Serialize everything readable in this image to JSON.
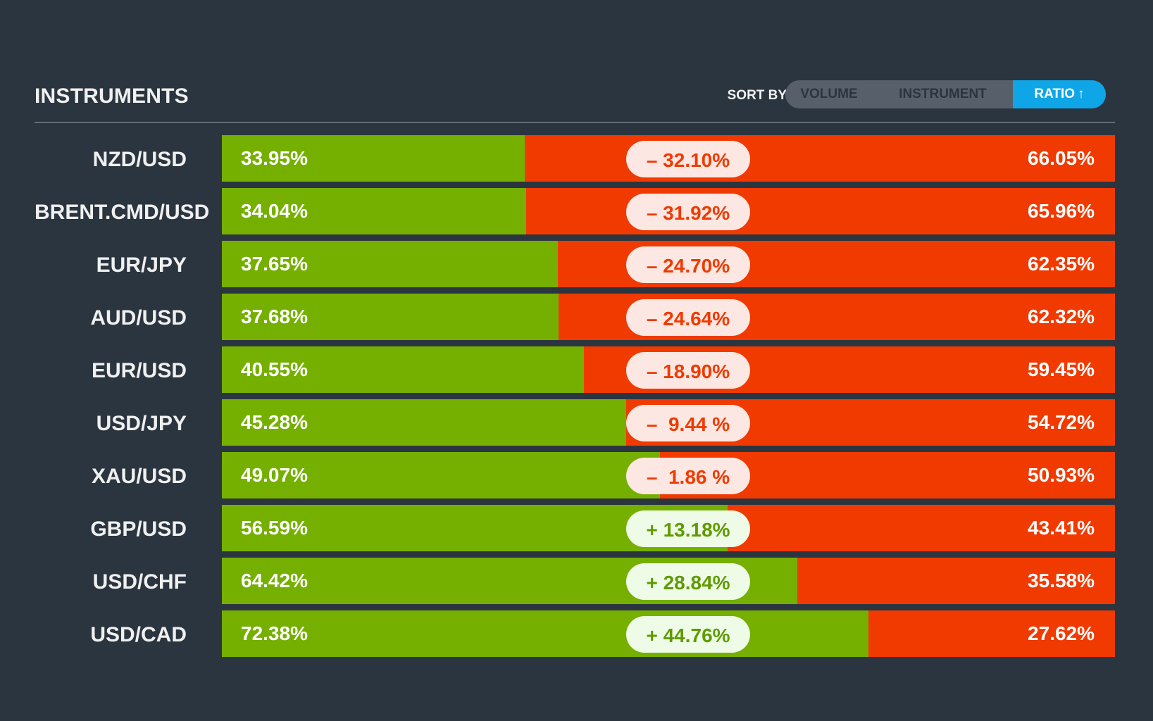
{
  "header": {
    "title": "INSTRUMENTS",
    "sort_label": "SORT BY:",
    "sort_options": [
      {
        "label": "VOLUME",
        "active": false
      },
      {
        "label": "INSTRUMENT",
        "active": false
      },
      {
        "label": "RATIO",
        "active": true,
        "arrow": "↑"
      }
    ]
  },
  "colors": {
    "background": "#2b353f",
    "long": "#75b000",
    "short": "#f03a00",
    "accent": "#0fa6e8"
  },
  "rows": [
    {
      "instrument": "NZD/USD",
      "long": "33.95%",
      "short": "66.05%",
      "long_value": 33.95,
      "diff": "– 32.10%",
      "sign": "neg"
    },
    {
      "instrument": "BRENT.CMD/USD",
      "long": "34.04%",
      "short": "65.96%",
      "long_value": 34.04,
      "diff": "– 31.92%",
      "sign": "neg"
    },
    {
      "instrument": "EUR/JPY",
      "long": "37.65%",
      "short": "62.35%",
      "long_value": 37.65,
      "diff": "– 24.70%",
      "sign": "neg"
    },
    {
      "instrument": "AUD/USD",
      "long": "37.68%",
      "short": "62.32%",
      "long_value": 37.68,
      "diff": "– 24.64%",
      "sign": "neg"
    },
    {
      "instrument": "EUR/USD",
      "long": "40.55%",
      "short": "59.45%",
      "long_value": 40.55,
      "diff": "– 18.90%",
      "sign": "neg"
    },
    {
      "instrument": "USD/JPY",
      "long": "45.28%",
      "short": "54.72%",
      "long_value": 45.28,
      "diff": "–  9.44 %",
      "sign": "neg"
    },
    {
      "instrument": "XAU/USD",
      "long": "49.07%",
      "short": "50.93%",
      "long_value": 49.07,
      "diff": "–  1.86 %",
      "sign": "neg"
    },
    {
      "instrument": "GBP/USD",
      "long": "56.59%",
      "short": "43.41%",
      "long_value": 56.59,
      "diff": "+ 13.18%",
      "sign": "pos"
    },
    {
      "instrument": "USD/CHF",
      "long": "64.42%",
      "short": "35.58%",
      "long_value": 64.42,
      "diff": "+ 28.84%",
      "sign": "pos"
    },
    {
      "instrument": "USD/CAD",
      "long": "72.38%",
      "short": "27.62%",
      "long_value": 72.38,
      "diff": "+ 44.76%",
      "sign": "pos"
    }
  ]
}
